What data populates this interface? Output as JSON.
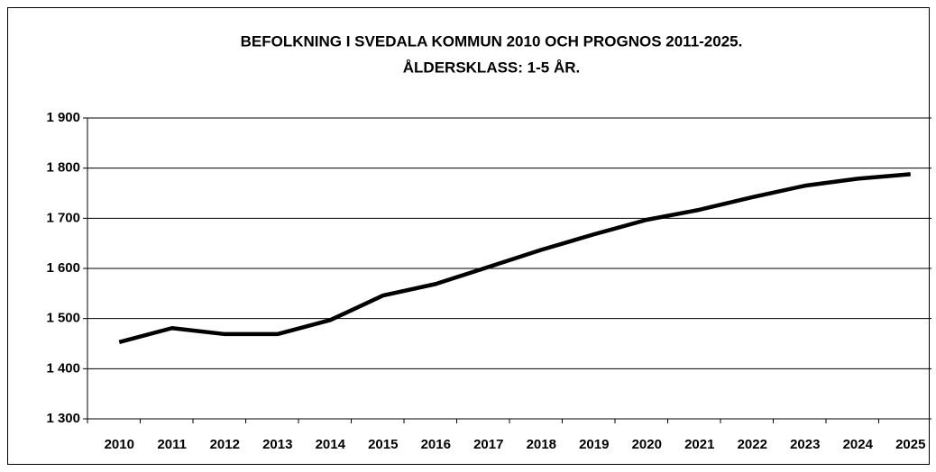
{
  "chart_data": {
    "type": "line",
    "title": "BEFOLKNING I SVEDALA KOMMUN 2010 OCH PROGNOS 2011-2025.",
    "subtitle": "ÅLDERSKLASS: 1-5 ÅR.",
    "categories": [
      "2010",
      "2011",
      "2012",
      "2013",
      "2014",
      "2015",
      "2016",
      "2017",
      "2018",
      "2019",
      "2020",
      "2021",
      "2022",
      "2023",
      "2024",
      "2025"
    ],
    "values": [
      1453,
      1481,
      1469,
      1469,
      1497,
      1546,
      1569,
      1603,
      1637,
      1668,
      1697,
      1717,
      1742,
      1765,
      1779,
      1788
    ],
    "color": "#000000",
    "ylim": [
      1300,
      1900
    ],
    "yticks": [
      {
        "value": 1300,
        "label": "1 300"
      },
      {
        "value": 1400,
        "label": "1 400"
      },
      {
        "value": 1500,
        "label": "1 500"
      },
      {
        "value": 1600,
        "label": "1 600"
      },
      {
        "value": 1700,
        "label": "1 700"
      },
      {
        "value": 1800,
        "label": "1 800"
      },
      {
        "value": 1900,
        "label": "1 900"
      }
    ],
    "grid": true
  }
}
